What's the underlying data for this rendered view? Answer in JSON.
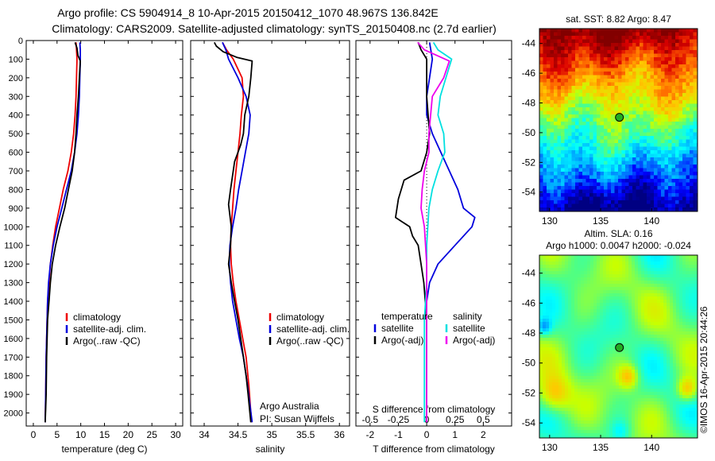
{
  "header": {
    "line1": "Argo profile: CS 5904914_8  10-Apr-2015 20150412_1070 48.967S 136.842E",
    "line2": "Climatology: CARS2009. Satellite-adjusted climatology: synTS_20150408.nc (2.7d earlier)"
  },
  "colors": {
    "climatology": "#ee0000",
    "satellite": "#0000dd",
    "argo": "#000000",
    "sal_satellite": "#00e0e0",
    "sal_argo": "#ee00ee",
    "marker": "#22aa22"
  },
  "depth_ticks": [
    0,
    100,
    200,
    300,
    400,
    500,
    600,
    700,
    800,
    900,
    1000,
    1100,
    1200,
    1300,
    1400,
    1500,
    1600,
    1700,
    1800,
    1900,
    2000
  ],
  "chart_data": [
    {
      "type": "line",
      "xlabel": "temperature (deg C)",
      "xlim": [
        -1.5,
        31.5
      ],
      "ylim": [
        2070,
        0
      ],
      "xticks": [
        0,
        5,
        10,
        15,
        20,
        25,
        30
      ],
      "legend": [
        "climatology",
        "satellite-adj. clim.",
        "Argo(..raw -QC)"
      ],
      "series": [
        {
          "name": "climatology",
          "color": "#ee0000",
          "x": [
            9.0,
            9.1,
            9.2,
            9.1,
            9.0,
            8.8,
            8.5,
            8.0,
            7.3,
            6.3,
            5.5,
            4.7,
            4.1,
            3.6,
            3.3,
            3.0,
            2.9,
            2.8,
            2.7,
            2.6,
            2.5
          ],
          "y": [
            10,
            50,
            100,
            200,
            300,
            400,
            500,
            600,
            700,
            800,
            900,
            1000,
            1100,
            1200,
            1300,
            1400,
            1500,
            1600,
            1700,
            1900,
            2050
          ]
        },
        {
          "name": "satellite-adj. clim.",
          "color": "#0000dd",
          "x": [
            9.8,
            9.9,
            9.9,
            9.8,
            9.7,
            9.5,
            9.2,
            8.7,
            8.0,
            7.0,
            6.0,
            5.0,
            4.2,
            3.6,
            3.2,
            3.0,
            2.9,
            2.8,
            2.7,
            2.6,
            2.5
          ],
          "y": [
            10,
            50,
            100,
            200,
            300,
            400,
            500,
            600,
            700,
            800,
            900,
            1000,
            1100,
            1200,
            1300,
            1400,
            1500,
            1600,
            1700,
            1900,
            2050
          ]
        },
        {
          "name": "Argo(..raw -QC)",
          "color": "#000000",
          "x": [
            8.8,
            9.2,
            9.4,
            9.9,
            9.7,
            9.5,
            9.2,
            9.0,
            8.7,
            8.2,
            7.4,
            6.6,
            5.6,
            4.7,
            4.0,
            3.6,
            3.3,
            3.0,
            2.8,
            2.7,
            2.5
          ],
          "y": [
            10,
            40,
            80,
            110,
            200,
            300,
            400,
            500,
            600,
            700,
            800,
            900,
            1000,
            1100,
            1200,
            1300,
            1400,
            1500,
            1700,
            1900,
            2050
          ]
        }
      ]
    },
    {
      "type": "line",
      "xlabel": "salinity",
      "xlim": [
        33.8,
        36.15
      ],
      "ylim": [
        2070,
        0
      ],
      "xticks": [
        34,
        34.5,
        35,
        35.5,
        36
      ],
      "legend": [
        "climatology",
        "satellite-adj. clim.",
        "Argo(..raw -QC)"
      ],
      "series": [
        {
          "name": "climatology",
          "color": "#ee0000",
          "x": [
            34.27,
            34.33,
            34.43,
            34.56,
            34.58,
            34.55,
            34.53,
            34.5,
            34.47,
            34.44,
            34.42,
            34.4,
            34.39,
            34.4,
            34.43,
            34.47,
            34.52,
            34.57,
            34.62,
            34.66,
            34.7
          ],
          "y": [
            10,
            50,
            100,
            200,
            300,
            400,
            500,
            600,
            700,
            800,
            900,
            1000,
            1100,
            1200,
            1300,
            1400,
            1500,
            1600,
            1700,
            1850,
            2050
          ]
        },
        {
          "name": "satellite-adj. clim.",
          "color": "#0000dd",
          "x": [
            34.27,
            34.32,
            34.36,
            34.5,
            34.62,
            34.68,
            34.66,
            34.61,
            34.56,
            34.51,
            34.47,
            34.42,
            34.38,
            34.37,
            34.39,
            34.42,
            34.47,
            34.52,
            34.58,
            34.64,
            34.71
          ],
          "y": [
            10,
            50,
            100,
            200,
            300,
            400,
            500,
            600,
            700,
            800,
            900,
            1000,
            1100,
            1200,
            1300,
            1400,
            1500,
            1600,
            1700,
            1850,
            2050
          ]
        },
        {
          "name": "Argo(..raw -QC)",
          "color": "#000000",
          "x": [
            34.15,
            34.18,
            34.28,
            34.48,
            34.71,
            34.69,
            34.66,
            34.6,
            34.58,
            34.54,
            34.45,
            34.39,
            34.36,
            34.4,
            34.39,
            34.36,
            34.4,
            34.45,
            34.5,
            34.54,
            34.58,
            34.62,
            34.65,
            34.69
          ],
          "y": [
            10,
            30,
            60,
            90,
            110,
            200,
            300,
            400,
            500,
            560,
            650,
            800,
            880,
            1000,
            1100,
            1200,
            1300,
            1400,
            1500,
            1600,
            1700,
            1800,
            1900,
            2050
          ]
        }
      ]
    },
    {
      "type": "line",
      "xlabel": "T difference from climatology",
      "xlabel_top": "S difference from climatology",
      "xlim": [
        -2.5,
        3.0
      ],
      "ylim": [
        2070,
        0
      ],
      "xticks": [
        -2,
        -1,
        0,
        1,
        2
      ],
      "xtick_labels_top": [
        "-0.5",
        "-0.25",
        "0",
        "0.25",
        "0.5"
      ],
      "legend_groups": [
        {
          "title": "temperature",
          "items": [
            "satellite",
            "Argo(-adj)"
          ]
        },
        {
          "title": "salinity",
          "items": [
            "satellite",
            "Argo(-adj)"
          ]
        }
      ],
      "series": [
        {
          "name": "temperature satellite",
          "color": "#0000dd",
          "x": [
            0.1,
            0.2,
            0.1,
            0.0,
            0.0,
            0.2,
            0.5,
            0.8,
            1.1,
            1.3,
            1.7,
            1.6,
            1.0,
            0.4,
            0.1,
            0.0,
            0.0,
            0.0,
            0.0,
            0.0
          ],
          "y": [
            10,
            100,
            200,
            300,
            400,
            500,
            600,
            700,
            800,
            900,
            950,
            1000,
            1100,
            1200,
            1300,
            1400,
            1500,
            1600,
            1800,
            2050
          ]
        },
        {
          "name": "temperature Argo(-adj)",
          "color": "#000000",
          "x": [
            -0.3,
            -0.2,
            0.0,
            0.0,
            0.1,
            0.0,
            -0.2,
            -0.8,
            -1.0,
            -1.1,
            -0.6,
            -0.5,
            -0.3,
            -0.2,
            -0.1,
            0.0,
            0.0,
            0.0,
            0.0
          ],
          "y": [
            10,
            50,
            100,
            300,
            500,
            600,
            700,
            750,
            850,
            950,
            1000,
            1050,
            1100,
            1200,
            1300,
            1500,
            1700,
            1900,
            2050
          ]
        },
        {
          "name": "salinity satellite",
          "color": "#00e0e0",
          "x": [
            0.06,
            0.1,
            0.22,
            0.17,
            0.12,
            0.1,
            0.15,
            0.16,
            0.1,
            0.05,
            0.02,
            0.0,
            0.0,
            -0.02,
            -0.02,
            -0.02
          ],
          "y": [
            10,
            50,
            100,
            200,
            300,
            400,
            500,
            600,
            700,
            800,
            900,
            1100,
            1300,
            1500,
            1800,
            2050
          ]
        },
        {
          "name": "salinity Argo(-adj)",
          "color": "#ee00ee",
          "x": [
            -0.08,
            -0.02,
            0.2,
            0.15,
            0.05,
            0.02,
            0.02,
            -0.02,
            -0.04,
            -0.05,
            -0.02,
            0.0,
            0.0,
            0.0
          ],
          "y": [
            10,
            50,
            110,
            200,
            300,
            500,
            600,
            700,
            800,
            900,
            1000,
            1200,
            1500,
            2050
          ]
        }
      ]
    },
    {
      "type": "heatmap",
      "title": "sat. SST: 8.82 Argo: 8.47",
      "xlim": [
        129,
        144.5
      ],
      "ylim": [
        -55.3,
        -43
      ],
      "xticks": [
        130,
        135,
        140
      ],
      "yticks": [
        -44,
        -46,
        -48,
        -50,
        -52,
        -54
      ],
      "marker": {
        "lon": 136.842,
        "lat": -48.967
      }
    },
    {
      "type": "heatmap",
      "title": "Altim. SLA: 0.16",
      "subtitle": "Argo h1000: 0.0047 h2000: -0.024",
      "xlim": [
        129,
        144.5
      ],
      "ylim": [
        -55.0,
        -42.8
      ],
      "xticks": [
        130,
        135,
        140
      ],
      "yticks": [
        -44,
        -46,
        -48,
        -50,
        -52,
        -54
      ],
      "marker": {
        "lon": 136.842,
        "lat": -48.967
      }
    }
  ],
  "panel_texts": {
    "credit_line1": "Argo Australia",
    "credit_line2": "PI: Susan Wijffels",
    "imos_stamp": "©IMOS 16-Apr-2015 20:44:26"
  }
}
